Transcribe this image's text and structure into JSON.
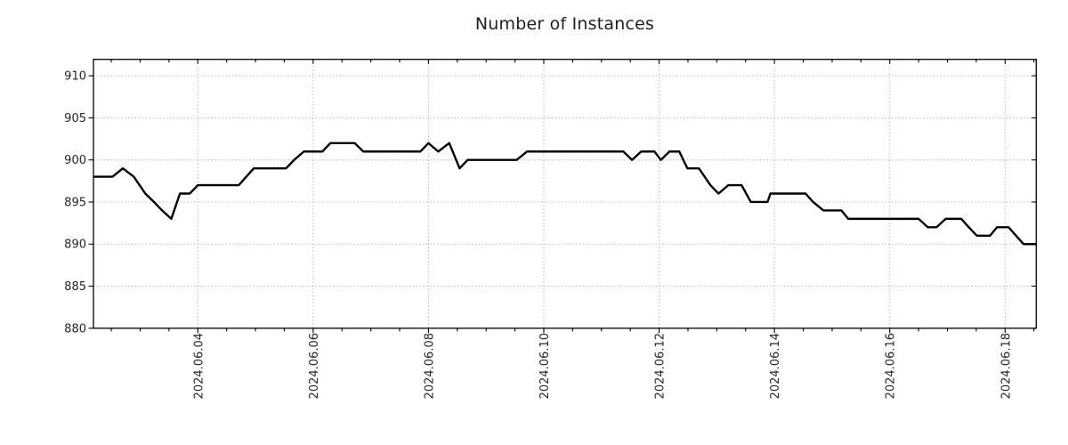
{
  "page": {
    "background": "#ffffff"
  },
  "chart_data": {
    "type": "line",
    "title": "Number of Instances",
    "legend": {
      "show": false
    },
    "grid": {
      "show": true,
      "style": "dotted",
      "color": "#b0b0b0"
    },
    "x_axis": {
      "unit": "days since 2024-06-02 00:00",
      "min": 0.19,
      "max": 16.54,
      "minor_tick_step_days": 0.5,
      "major_ticks": [
        {
          "day": 2,
          "label": "2024.06.04"
        },
        {
          "day": 4,
          "label": "2024.06.06"
        },
        {
          "day": 6,
          "label": "2024.06.08"
        },
        {
          "day": 8,
          "label": "2024.06.10"
        },
        {
          "day": 10,
          "label": "2024.06.12"
        },
        {
          "day": 12,
          "label": "2024.06.14"
        },
        {
          "day": 14,
          "label": "2024.06.16"
        },
        {
          "day": 16,
          "label": "2024.06.18"
        }
      ]
    },
    "y_axis": {
      "min": 880,
      "max": 911.95,
      "ticks": [
        880,
        885,
        890,
        895,
        900,
        905,
        910
      ]
    },
    "series": [
      {
        "name": "instances",
        "color": "#000000",
        "line_width": 2.4,
        "points": [
          [
            0.19,
            898
          ],
          [
            0.52,
            898
          ],
          [
            0.7,
            899
          ],
          [
            0.89,
            898
          ],
          [
            1.09,
            896
          ],
          [
            1.24,
            895
          ],
          [
            1.38,
            894
          ],
          [
            1.54,
            893
          ],
          [
            1.69,
            896
          ],
          [
            1.86,
            896
          ],
          [
            2.0,
            897
          ],
          [
            2.71,
            897
          ],
          [
            2.97,
            899
          ],
          [
            3.53,
            899
          ],
          [
            3.67,
            900
          ],
          [
            3.84,
            901
          ],
          [
            4.16,
            901
          ],
          [
            4.3,
            902
          ],
          [
            4.72,
            902
          ],
          [
            4.87,
            901
          ],
          [
            5.86,
            901
          ],
          [
            6.0,
            902
          ],
          [
            6.17,
            901
          ],
          [
            6.36,
            902
          ],
          [
            6.54,
            899
          ],
          [
            6.68,
            900
          ],
          [
            7.53,
            900
          ],
          [
            7.71,
            901
          ],
          [
            9.38,
            901
          ],
          [
            9.53,
            900
          ],
          [
            9.69,
            901
          ],
          [
            9.92,
            901
          ],
          [
            10.03,
            900
          ],
          [
            10.18,
            901
          ],
          [
            10.35,
            901
          ],
          [
            10.49,
            899
          ],
          [
            10.69,
            899
          ],
          [
            10.89,
            897
          ],
          [
            11.03,
            896
          ],
          [
            11.2,
            897
          ],
          [
            11.43,
            897
          ],
          [
            11.51,
            896
          ],
          [
            11.59,
            895
          ],
          [
            11.88,
            895
          ],
          [
            11.93,
            896
          ],
          [
            12.54,
            896
          ],
          [
            12.67,
            895
          ],
          [
            12.85,
            894
          ],
          [
            13.16,
            894
          ],
          [
            13.28,
            893
          ],
          [
            14.5,
            893
          ],
          [
            14.66,
            892
          ],
          [
            14.81,
            892
          ],
          [
            14.97,
            893
          ],
          [
            15.24,
            893
          ],
          [
            15.37,
            892
          ],
          [
            15.51,
            891
          ],
          [
            15.74,
            891
          ],
          [
            15.86,
            892
          ],
          [
            16.06,
            892
          ],
          [
            16.19,
            891
          ],
          [
            16.32,
            890
          ],
          [
            16.54,
            890
          ]
        ]
      }
    ]
  }
}
